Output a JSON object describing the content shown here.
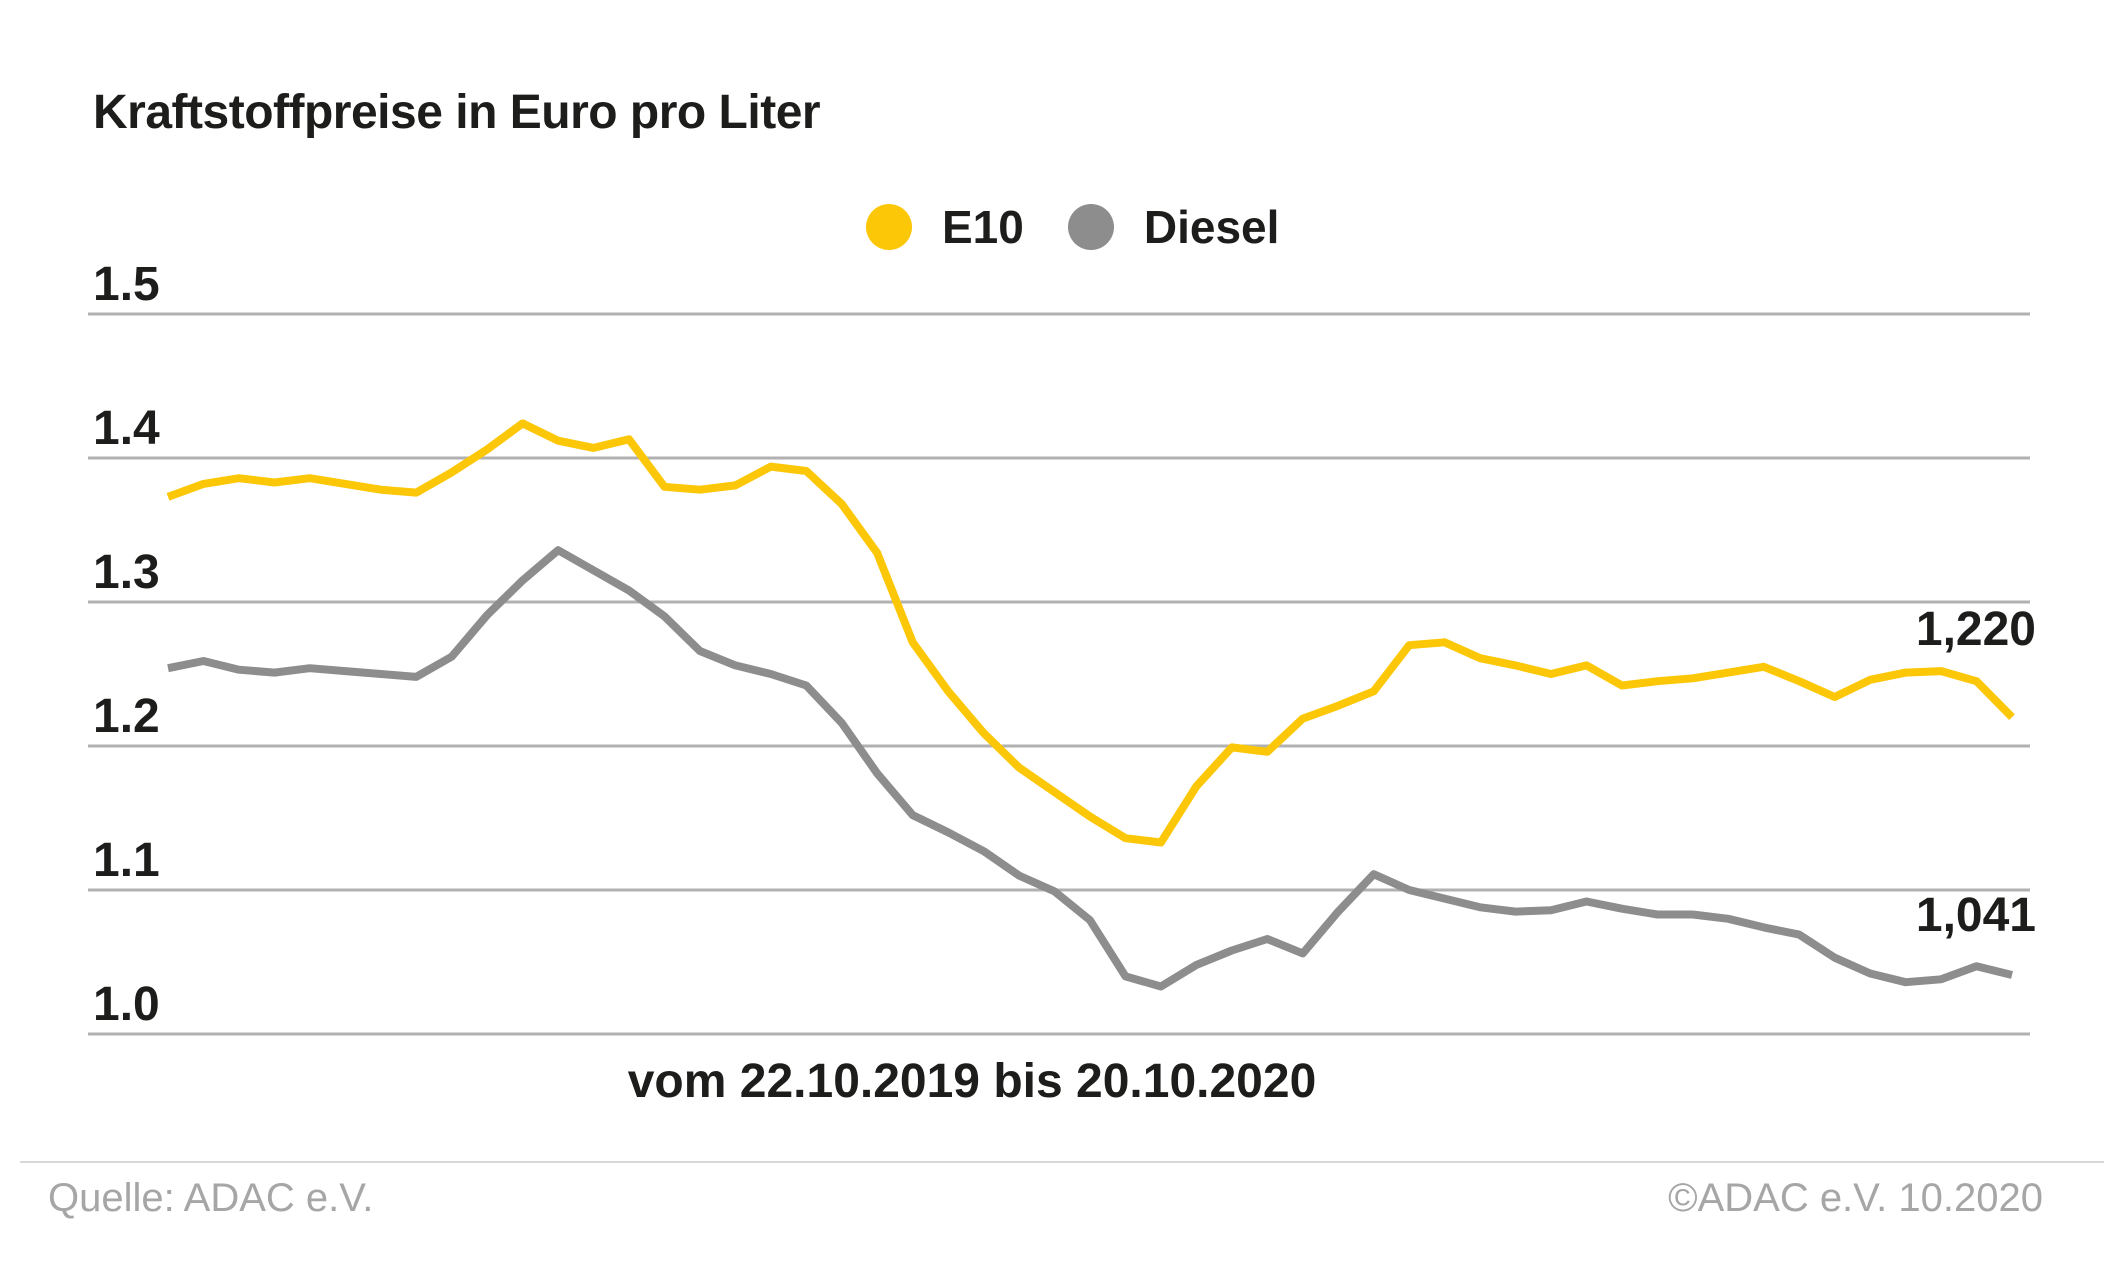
{
  "header": {
    "title": "Kraftstoffpreise in Euro pro Liter"
  },
  "legend": [
    {
      "label": "E10",
      "color": "#fbc707"
    },
    {
      "label": "Diesel",
      "color": "#8d8d8d"
    }
  ],
  "end_labels": {
    "e10": "1,220",
    "diesel": "1,041"
  },
  "x_axis_label": "vom 22.10.2019 bis 20.10.2020",
  "footer": {
    "source": "Quelle: ADAC e.V.",
    "copyright": "©ADAC e.V. 10.2020"
  },
  "chart_data": {
    "type": "line",
    "title": "Kraftstoffpreise in Euro pro Liter",
    "unit": "Euro pro Liter",
    "x_label": "vom 22.10.2019 bis 20.10.2020",
    "x_range": [
      "22.10.2019",
      "20.10.2020"
    ],
    "x_interval": "weekly",
    "n_points": 53,
    "y_ticks": [
      1.5,
      1.4,
      1.3,
      1.2,
      1.1,
      1.0
    ],
    "y_tick_labels": [
      "1.5",
      "1.4",
      "1.3",
      "1.2",
      "1.1",
      "1.0"
    ],
    "ylim": [
      0.97,
      1.53
    ],
    "grid": true,
    "legend_position": "top-center",
    "grid_color": "#b1b1b1",
    "series": [
      {
        "name": "E10",
        "color": "#fbc707",
        "last_value_label": "1,220",
        "values": [
          1.373,
          1.382,
          1.386,
          1.383,
          1.386,
          1.382,
          1.378,
          1.376,
          1.39,
          1.406,
          1.424,
          1.412,
          1.407,
          1.413,
          1.38,
          1.378,
          1.381,
          1.394,
          1.391,
          1.368,
          1.334,
          1.272,
          1.238,
          1.209,
          1.185,
          1.168,
          1.151,
          1.136,
          1.133,
          1.172,
          1.199,
          1.196,
          1.219,
          1.228,
          1.238,
          1.27,
          1.272,
          1.261,
          1.256,
          1.25,
          1.256,
          1.242,
          1.245,
          1.247,
          1.251,
          1.255,
          1.245,
          1.234,
          1.246,
          1.251,
          1.252,
          1.245,
          1.22
        ]
      },
      {
        "name": "Diesel",
        "color": "#8d8d8d",
        "last_value_label": "1,041",
        "values": [
          1.254,
          1.259,
          1.253,
          1.251,
          1.254,
          1.252,
          1.25,
          1.248,
          1.262,
          1.291,
          1.315,
          1.336,
          1.322,
          1.308,
          1.29,
          1.266,
          1.256,
          1.25,
          1.242,
          1.216,
          1.181,
          1.152,
          1.14,
          1.127,
          1.11,
          1.099,
          1.079,
          1.04,
          1.033,
          1.048,
          1.058,
          1.066,
          1.056,
          1.085,
          1.111,
          1.1,
          1.094,
          1.088,
          1.085,
          1.086,
          1.092,
          1.087,
          1.083,
          1.083,
          1.08,
          1.074,
          1.069,
          1.053,
          1.042,
          1.036,
          1.038,
          1.047,
          1.041
        ]
      }
    ]
  }
}
